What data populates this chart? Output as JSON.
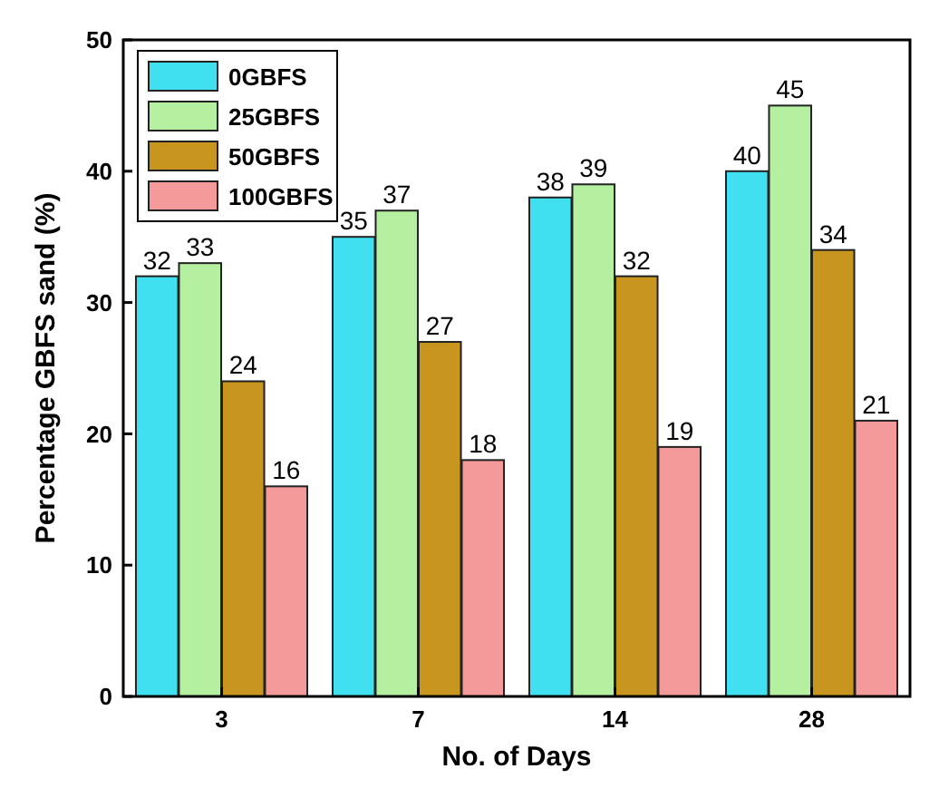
{
  "chart_data": {
    "type": "bar",
    "xlabel": "No. of Days",
    "ylabel": "Percentage GBFS sand (%)",
    "categories": [
      "3",
      "7",
      "14",
      "28"
    ],
    "series": [
      {
        "name": "0GBFS",
        "color": "#40e0f0",
        "values": [
          32,
          35,
          38,
          40
        ]
      },
      {
        "name": "25GBFS",
        "color": "#b4f0a0",
        "values": [
          33,
          37,
          39,
          45
        ]
      },
      {
        "name": "50GBFS",
        "color": "#c8961e",
        "values": [
          24,
          27,
          32,
          34
        ]
      },
      {
        "name": "100GBFS",
        "color": "#f49a9a",
        "values": [
          16,
          18,
          19,
          21
        ]
      }
    ],
    "ylim": [
      0,
      50
    ],
    "yticks": [
      0,
      10,
      20,
      30,
      40,
      50
    ],
    "grid": false,
    "legend": "top left",
    "data_labels": true
  }
}
